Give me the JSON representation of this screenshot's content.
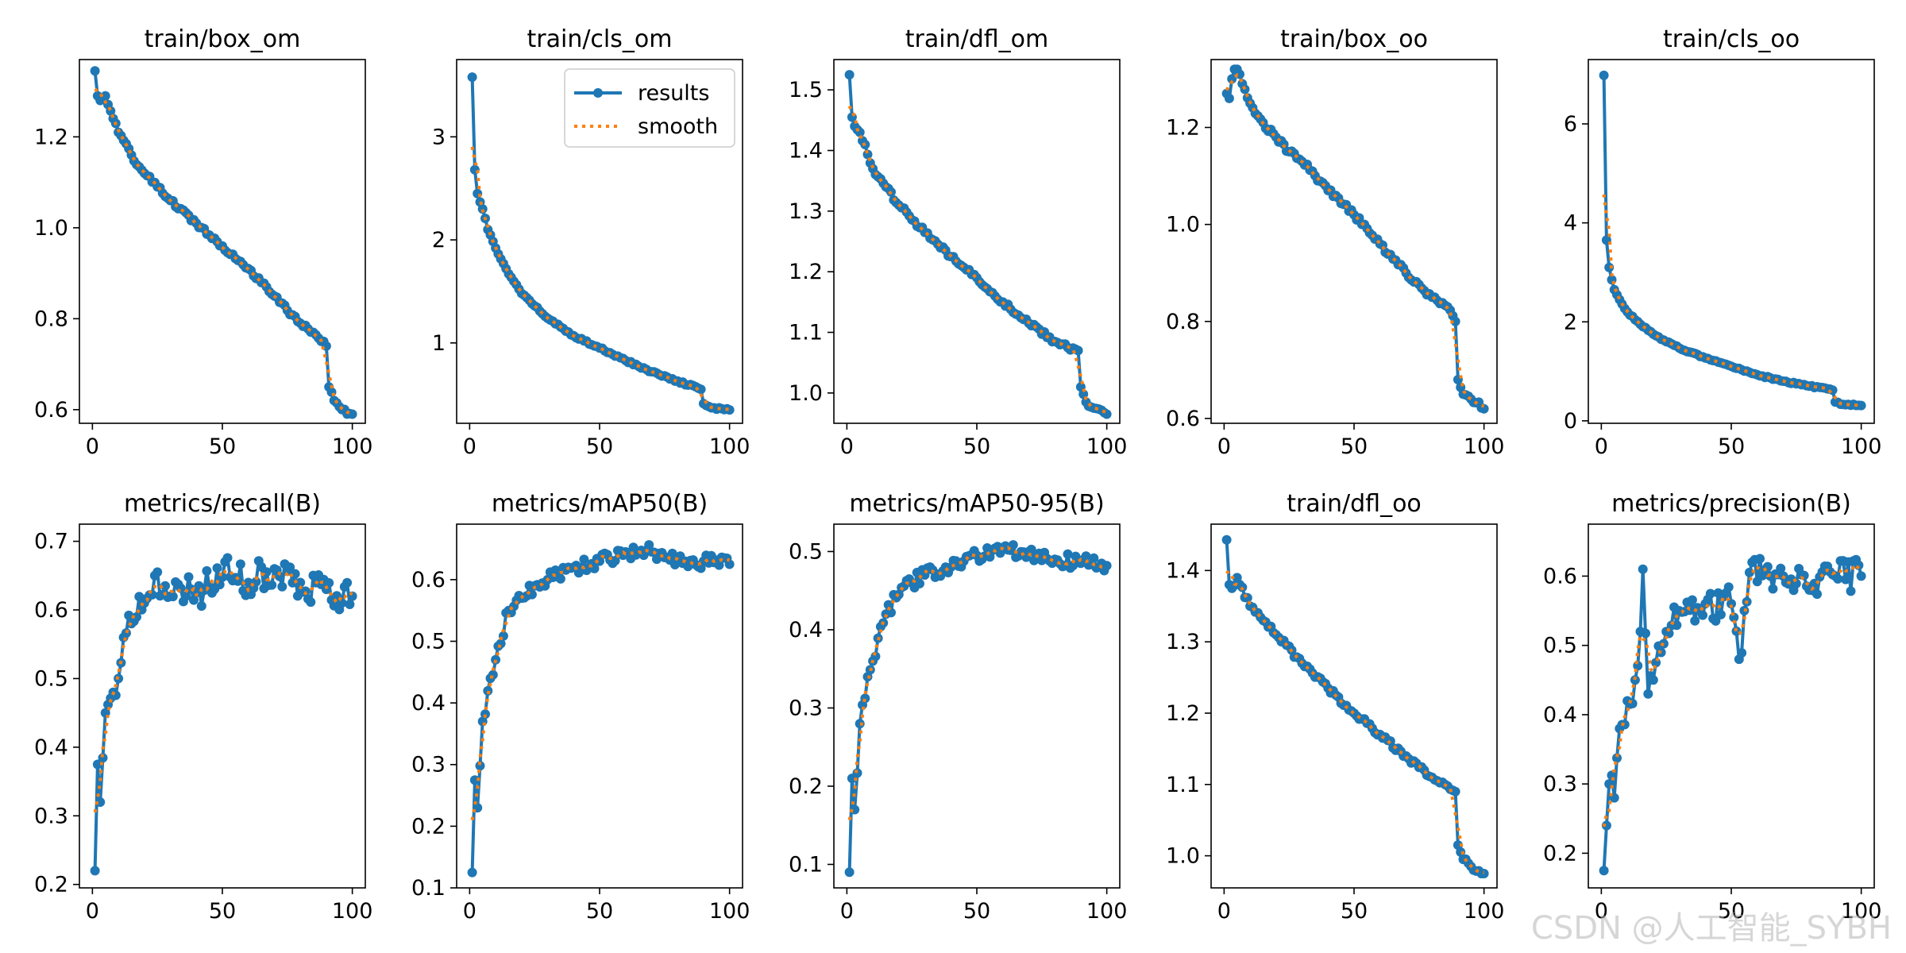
{
  "legend": {
    "results_label": "results",
    "smooth_label": "smooth",
    "location": "upper right (panel 2)"
  },
  "colors": {
    "results": "#1f77b4",
    "smooth": "#ff7f0e",
    "axes": "#000000",
    "background": "#ffffff"
  },
  "watermark": "CSDN @人工智能_SYBH",
  "chart_data": [
    {
      "type": "line",
      "title": "train/box_om",
      "xlim": [
        -5,
        105
      ],
      "ylim": [
        0.57,
        1.37
      ],
      "xticks": [
        0,
        50,
        100
      ],
      "yticks": [
        0.6,
        0.8,
        1.0,
        1.2
      ],
      "ytick_labels": [
        "0.6",
        "0.8",
        "1.0",
        "1.2"
      ],
      "legend": false,
      "noise": 0.005,
      "anchors": [
        [
          1,
          1.345
        ],
        [
          2,
          1.29
        ],
        [
          3,
          1.28
        ],
        [
          5,
          1.29
        ],
        [
          10,
          1.21
        ],
        [
          15,
          1.16
        ],
        [
          20,
          1.12
        ],
        [
          25,
          1.09
        ],
        [
          30,
          1.06
        ],
        [
          40,
          1.01
        ],
        [
          50,
          0.96
        ],
        [
          60,
          0.91
        ],
        [
          70,
          0.85
        ],
        [
          80,
          0.79
        ],
        [
          85,
          0.77
        ],
        [
          89,
          0.75
        ],
        [
          90,
          0.74
        ],
        [
          91,
          0.65
        ],
        [
          93,
          0.62
        ],
        [
          96,
          0.6
        ],
        [
          100,
          0.59
        ]
      ]
    },
    {
      "type": "line",
      "title": "train/cls_om",
      "xlim": [
        -5,
        105
      ],
      "ylim": [
        0.22,
        3.75
      ],
      "xticks": [
        0,
        50,
        100
      ],
      "yticks": [
        1,
        2,
        3
      ],
      "ytick_labels": [
        "1",
        "2",
        "3"
      ],
      "legend": true,
      "noise": 0.01,
      "anchors": [
        [
          1,
          3.58
        ],
        [
          2,
          2.68
        ],
        [
          3,
          2.45
        ],
        [
          5,
          2.3
        ],
        [
          7,
          2.1
        ],
        [
          10,
          1.92
        ],
        [
          15,
          1.67
        ],
        [
          20,
          1.48
        ],
        [
          25,
          1.36
        ],
        [
          30,
          1.24
        ],
        [
          40,
          1.07
        ],
        [
          50,
          0.95
        ],
        [
          60,
          0.83
        ],
        [
          70,
          0.72
        ],
        [
          80,
          0.63
        ],
        [
          88,
          0.56
        ],
        [
          89,
          0.55
        ],
        [
          90,
          0.41
        ],
        [
          93,
          0.37
        ],
        [
          100,
          0.35
        ]
      ]
    },
    {
      "type": "line",
      "title": "train/dfl_om",
      "xlim": [
        -5,
        105
      ],
      "ylim": [
        0.95,
        1.55
      ],
      "xticks": [
        0,
        50,
        100
      ],
      "yticks": [
        1.0,
        1.1,
        1.2,
        1.3,
        1.4,
        1.5
      ],
      "ytick_labels": [
        "1.0",
        "1.1",
        "1.2",
        "1.3",
        "1.4",
        "1.5"
      ],
      "legend": false,
      "noise": 0.004,
      "anchors": [
        [
          1,
          1.525
        ],
        [
          2,
          1.455
        ],
        [
          3,
          1.44
        ],
        [
          5,
          1.43
        ],
        [
          10,
          1.37
        ],
        [
          15,
          1.34
        ],
        [
          20,
          1.31
        ],
        [
          30,
          1.265
        ],
        [
          40,
          1.225
        ],
        [
          50,
          1.19
        ],
        [
          60,
          1.15
        ],
        [
          70,
          1.115
        ],
        [
          80,
          1.085
        ],
        [
          85,
          1.075
        ],
        [
          89,
          1.07
        ],
        [
          90,
          1.01
        ],
        [
          92,
          0.985
        ],
        [
          95,
          0.975
        ],
        [
          100,
          0.965
        ]
      ]
    },
    {
      "type": "line",
      "title": "train/box_oo",
      "xlim": [
        -5,
        105
      ],
      "ylim": [
        0.59,
        1.34
      ],
      "xticks": [
        0,
        50,
        100
      ],
      "yticks": [
        0.6,
        0.8,
        1.0,
        1.2
      ],
      "ytick_labels": [
        "0.6",
        "0.8",
        "1.0",
        "1.2"
      ],
      "legend": false,
      "noise": 0.006,
      "anchors": [
        [
          1,
          1.27
        ],
        [
          2,
          1.26
        ],
        [
          3,
          1.3
        ],
        [
          4,
          1.32
        ],
        [
          5,
          1.32
        ],
        [
          7,
          1.29
        ],
        [
          10,
          1.25
        ],
        [
          15,
          1.21
        ],
        [
          20,
          1.18
        ],
        [
          25,
          1.15
        ],
        [
          30,
          1.13
        ],
        [
          40,
          1.07
        ],
        [
          50,
          1.02
        ],
        [
          60,
          0.96
        ],
        [
          70,
          0.9
        ],
        [
          80,
          0.85
        ],
        [
          86,
          0.83
        ],
        [
          89,
          0.8
        ],
        [
          90,
          0.68
        ],
        [
          92,
          0.65
        ],
        [
          95,
          0.64
        ],
        [
          100,
          0.62
        ]
      ]
    },
    {
      "type": "line",
      "title": "train/cls_oo",
      "xlim": [
        -5,
        105
      ],
      "ylim": [
        -0.05,
        7.3
      ],
      "xticks": [
        0,
        50,
        100
      ],
      "yticks": [
        0,
        2,
        4,
        6
      ],
      "ytick_labels": [
        "0",
        "2",
        "4",
        "6"
      ],
      "legend": false,
      "noise": 0.015,
      "anchors": [
        [
          1,
          6.98
        ],
        [
          2,
          3.65
        ],
        [
          3,
          3.1
        ],
        [
          4,
          2.85
        ],
        [
          5,
          2.65
        ],
        [
          7,
          2.45
        ],
        [
          10,
          2.2
        ],
        [
          15,
          1.95
        ],
        [
          20,
          1.75
        ],
        [
          25,
          1.6
        ],
        [
          30,
          1.47
        ],
        [
          40,
          1.27
        ],
        [
          50,
          1.1
        ],
        [
          60,
          0.93
        ],
        [
          70,
          0.8
        ],
        [
          80,
          0.7
        ],
        [
          88,
          0.64
        ],
        [
          89,
          0.62
        ],
        [
          90,
          0.38
        ],
        [
          93,
          0.33
        ],
        [
          100,
          0.31
        ]
      ]
    },
    {
      "type": "line",
      "title": "metrics/recall(B)",
      "xlim": [
        -5,
        105
      ],
      "ylim": [
        0.195,
        0.725
      ],
      "xticks": [
        0,
        50,
        100
      ],
      "yticks": [
        0.2,
        0.3,
        0.4,
        0.5,
        0.6,
        0.7
      ],
      "ytick_labels": [
        "0.2",
        "0.3",
        "0.4",
        "0.5",
        "0.6",
        "0.7"
      ],
      "legend": false,
      "noise": 0.025,
      "anchors": [
        [
          1,
          0.22
        ],
        [
          2,
          0.375
        ],
        [
          3,
          0.32
        ],
        [
          5,
          0.45
        ],
        [
          8,
          0.48
        ],
        [
          10,
          0.5
        ],
        [
          12,
          0.56
        ],
        [
          15,
          0.58
        ],
        [
          20,
          0.61
        ],
        [
          24,
          0.65
        ],
        [
          30,
          0.62
        ],
        [
          40,
          0.625
        ],
        [
          45,
          0.635
        ],
        [
          51,
          0.67
        ],
        [
          60,
          0.64
        ],
        [
          70,
          0.66
        ],
        [
          80,
          0.64
        ],
        [
          90,
          0.63
        ],
        [
          100,
          0.62
        ]
      ]
    },
    {
      "type": "line",
      "title": "metrics/mAP50(B)",
      "xlim": [
        -5,
        105
      ],
      "ylim": [
        0.1,
        0.69
      ],
      "xticks": [
        0,
        50,
        100
      ],
      "yticks": [
        0.1,
        0.2,
        0.3,
        0.4,
        0.5,
        0.6
      ],
      "ytick_labels": [
        "0.1",
        "0.2",
        "0.3",
        "0.4",
        "0.5",
        "0.6"
      ],
      "legend": false,
      "noise": 0.012,
      "anchors": [
        [
          1,
          0.125
        ],
        [
          2,
          0.275
        ],
        [
          3,
          0.23
        ],
        [
          5,
          0.37
        ],
        [
          8,
          0.44
        ],
        [
          10,
          0.47
        ],
        [
          15,
          0.55
        ],
        [
          20,
          0.57
        ],
        [
          25,
          0.59
        ],
        [
          30,
          0.6
        ],
        [
          40,
          0.62
        ],
        [
          50,
          0.63
        ],
        [
          60,
          0.645
        ],
        [
          70,
          0.645
        ],
        [
          80,
          0.635
        ],
        [
          90,
          0.63
        ],
        [
          100,
          0.625
        ]
      ]
    },
    {
      "type": "line",
      "title": "metrics/mAP50-95(B)",
      "xlim": [
        -5,
        105
      ],
      "ylim": [
        0.07,
        0.535
      ],
      "xticks": [
        0,
        50,
        100
      ],
      "yticks": [
        0.1,
        0.2,
        0.3,
        0.4,
        0.5
      ],
      "ytick_labels": [
        "0.1",
        "0.2",
        "0.3",
        "0.4",
        "0.5"
      ],
      "legend": false,
      "noise": 0.01,
      "anchors": [
        [
          1,
          0.09
        ],
        [
          2,
          0.21
        ],
        [
          3,
          0.17
        ],
        [
          5,
          0.28
        ],
        [
          8,
          0.34
        ],
        [
          10,
          0.36
        ],
        [
          15,
          0.42
        ],
        [
          20,
          0.445
        ],
        [
          25,
          0.46
        ],
        [
          30,
          0.47
        ],
        [
          40,
          0.48
        ],
        [
          50,
          0.495
        ],
        [
          60,
          0.505
        ],
        [
          70,
          0.5
        ],
        [
          80,
          0.49
        ],
        [
          90,
          0.485
        ],
        [
          100,
          0.482
        ]
      ]
    },
    {
      "type": "line",
      "title": "train/dfl_oo",
      "xlim": [
        -5,
        105
      ],
      "ylim": [
        0.955,
        1.465
      ],
      "xticks": [
        0,
        50,
        100
      ],
      "yticks": [
        1.0,
        1.1,
        1.2,
        1.3,
        1.4
      ],
      "ytick_labels": [
        "1.0",
        "1.1",
        "1.2",
        "1.3",
        "1.4"
      ],
      "legend": false,
      "noise": 0.004,
      "anchors": [
        [
          1,
          1.443
        ],
        [
          2,
          1.38
        ],
        [
          3,
          1.375
        ],
        [
          5,
          1.39
        ],
        [
          10,
          1.35
        ],
        [
          15,
          1.33
        ],
        [
          20,
          1.31
        ],
        [
          30,
          1.27
        ],
        [
          40,
          1.235
        ],
        [
          50,
          1.2
        ],
        [
          60,
          1.17
        ],
        [
          70,
          1.14
        ],
        [
          80,
          1.11
        ],
        [
          85,
          1.1
        ],
        [
          89,
          1.09
        ],
        [
          90,
          1.015
        ],
        [
          92,
          0.995
        ],
        [
          95,
          0.985
        ],
        [
          100,
          0.975
        ]
      ]
    },
    {
      "type": "line",
      "title": "metrics/precision(B)",
      "xlim": [
        -5,
        105
      ],
      "ylim": [
        0.15,
        0.675
      ],
      "xticks": [
        0,
        50,
        100
      ],
      "yticks": [
        0.2,
        0.3,
        0.4,
        0.5,
        0.6
      ],
      "ytick_labels": [
        "0.2",
        "0.3",
        "0.4",
        "0.5",
        "0.6"
      ],
      "legend": false,
      "noise": 0.025,
      "anchors": [
        [
          1,
          0.175
        ],
        [
          2,
          0.24
        ],
        [
          3,
          0.3
        ],
        [
          5,
          0.28
        ],
        [
          7,
          0.38
        ],
        [
          10,
          0.42
        ],
        [
          13,
          0.45
        ],
        [
          15,
          0.52
        ],
        [
          16,
          0.61
        ],
        [
          18,
          0.43
        ],
        [
          20,
          0.45
        ],
        [
          25,
          0.52
        ],
        [
          30,
          0.55
        ],
        [
          40,
          0.56
        ],
        [
          50,
          0.56
        ],
        [
          53,
          0.48
        ],
        [
          58,
          0.62
        ],
        [
          65,
          0.6
        ],
        [
          70,
          0.6
        ],
        [
          80,
          0.58
        ],
        [
          90,
          0.6
        ],
        [
          100,
          0.6
        ]
      ]
    }
  ]
}
